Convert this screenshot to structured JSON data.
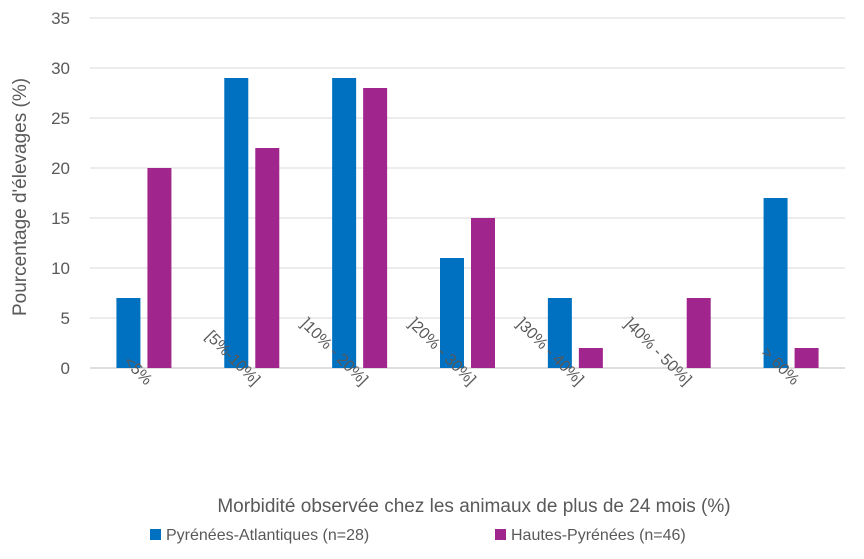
{
  "chart_data": {
    "type": "bar",
    "title": "",
    "xlabel": "Morbidité observée chez les animaux de plus de 24 mois (%)",
    "ylabel": "Pourcentage d'élevages (%)",
    "ylim": [
      0,
      35
    ],
    "yticks": [
      0,
      5,
      10,
      15,
      20,
      25,
      30,
      35
    ],
    "grid": true,
    "legend_position": "bottom",
    "categories": [
      "<5%",
      "[5%-10%]",
      "]10% - 20%]",
      "]20% - 30%]",
      "]30% - 40%]",
      "]40% - 50%]",
      "> 60%"
    ],
    "series": [
      {
        "name": "Pyrénées-Atlantiques (n=28)",
        "color": "#0070C0",
        "values": [
          7,
          29,
          29,
          11,
          7,
          0,
          17
        ]
      },
      {
        "name": "Hautes-Pyrénées (n=46)",
        "color": "#A0268E",
        "values": [
          20,
          22,
          28,
          15,
          2,
          7,
          2
        ]
      }
    ]
  }
}
